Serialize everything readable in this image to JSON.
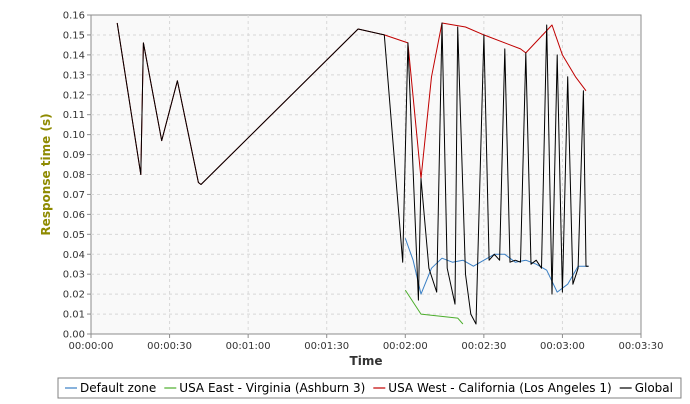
{
  "chart_data": {
    "type": "line",
    "title": "",
    "xlabel": "Time",
    "ylabel": "Response time (s)",
    "xlim": [
      0,
      210
    ],
    "ylim": [
      0,
      0.16
    ],
    "grid": true,
    "legend_position": "bottom",
    "x_ticks": [
      0,
      30,
      60,
      90,
      120,
      150,
      180,
      210
    ],
    "x_tick_labels": [
      "00:00:00",
      "00:00:30",
      "00:01:00",
      "00:01:30",
      "00:02:00",
      "00:02:30",
      "00:03:00",
      "00:03:30"
    ],
    "y_ticks": [
      0,
      0.01,
      0.02,
      0.03,
      0.04,
      0.05,
      0.06,
      0.07,
      0.08,
      0.09,
      0.1,
      0.11,
      0.12,
      0.13,
      0.14,
      0.15,
      0.16
    ],
    "y_tick_labels": [
      "0.00",
      "0.01",
      "0.02",
      "0.03",
      "0.04",
      "0.05",
      "0.06",
      "0.07",
      "0.08",
      "0.09",
      "0.10",
      "0.11",
      "0.12",
      "0.13",
      "0.14",
      "0.15",
      "0.16"
    ],
    "series": [
      {
        "name": "Default zone",
        "color": "#3a7fc4",
        "x": [
          120,
          123,
          126,
          130,
          134,
          138,
          142,
          146,
          150,
          154,
          158,
          162,
          166,
          170,
          174,
          178,
          182,
          186,
          190
        ],
        "y": [
          0.048,
          0.037,
          0.02,
          0.033,
          0.038,
          0.036,
          0.037,
          0.034,
          0.037,
          0.04,
          0.04,
          0.036,
          0.037,
          0.035,
          0.032,
          0.021,
          0.025,
          0.034,
          0.034
        ]
      },
      {
        "name": "USA East - Virginia (Ashburn 3)",
        "color": "#4cae2c",
        "x": [
          120,
          126,
          140,
          142
        ],
        "y": [
          0.022,
          0.01,
          0.008,
          0.005
        ]
      },
      {
        "name": "USA West - California (Los Angeles 1)",
        "color": "#c00000",
        "x": [
          10,
          19,
          20,
          27,
          33,
          41,
          42,
          102,
          112,
          121,
          126,
          130,
          134,
          143,
          150,
          164,
          166,
          176,
          180,
          185,
          189
        ],
        "y": [
          0.156,
          0.08,
          0.146,
          0.097,
          0.127,
          0.076,
          0.075,
          0.153,
          0.15,
          0.146,
          0.078,
          0.129,
          0.156,
          0.154,
          0.15,
          0.143,
          0.141,
          0.155,
          0.14,
          0.129,
          0.122
        ]
      },
      {
        "name": "Global",
        "color": "#000000",
        "x": [
          10,
          19,
          20,
          27,
          33,
          41,
          42,
          102,
          112,
          119,
          121,
          125,
          126,
          129,
          132,
          134,
          136,
          139,
          140,
          143,
          145,
          147,
          150,
          152,
          154,
          156,
          158,
          160,
          162,
          164,
          166,
          168,
          170,
          172,
          174,
          176,
          178,
          180,
          182,
          184,
          186,
          188,
          189,
          190
        ],
        "y": [
          0.156,
          0.08,
          0.146,
          0.097,
          0.127,
          0.076,
          0.075,
          0.153,
          0.15,
          0.036,
          0.146,
          0.017,
          0.078,
          0.033,
          0.021,
          0.156,
          0.033,
          0.015,
          0.154,
          0.03,
          0.01,
          0.005,
          0.15,
          0.037,
          0.04,
          0.037,
          0.143,
          0.036,
          0.037,
          0.036,
          0.141,
          0.035,
          0.037,
          0.033,
          0.155,
          0.02,
          0.14,
          0.021,
          0.129,
          0.025,
          0.033,
          0.122,
          0.034,
          0.034
        ]
      }
    ]
  }
}
